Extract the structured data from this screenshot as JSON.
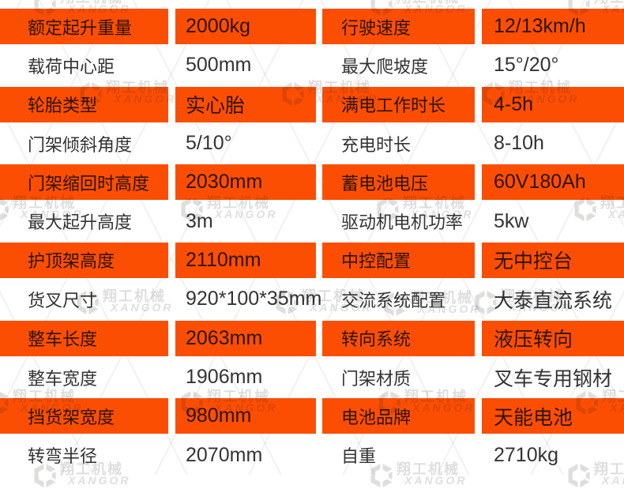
{
  "table": {
    "rows": [
      {
        "left_label": "额定起升重量",
        "left_value": "2000kg",
        "right_label": "行驶速度",
        "right_value": "12/13km/h",
        "highlight": true
      },
      {
        "left_label": "载荷中心距",
        "left_value": "500mm",
        "right_label": "最大爬坡度",
        "right_value": "15°/20°",
        "highlight": false
      },
      {
        "left_label": "轮胎类型",
        "left_value": "实心胎",
        "right_label": "满电工作时长",
        "right_value": "4-5h",
        "highlight": true
      },
      {
        "left_label": "门架倾斜角度",
        "left_value": "5/10°",
        "right_label": "充电时长",
        "right_value": "8-10h",
        "highlight": false
      },
      {
        "left_label": "门架缩回时高度",
        "left_value": "2030mm",
        "right_label": "蓄电池电压",
        "right_value": "60V180Ah",
        "highlight": true
      },
      {
        "left_label": "最大起升高度",
        "left_value": "3m",
        "right_label": "驱动机电机功率",
        "right_value": "5kw",
        "highlight": false
      },
      {
        "left_label": "护顶架高度",
        "left_value": "2110mm",
        "right_label": "中控配置",
        "right_value": "无中控台",
        "highlight": true
      },
      {
        "left_label": "货叉尺寸",
        "left_value": "920*100*35mm",
        "right_label": "交流系统配置",
        "right_value": "大泰直流系统",
        "highlight": false
      },
      {
        "left_label": "整车长度",
        "left_value": "2063mm",
        "right_label": "转向系统",
        "right_value": "液压转向",
        "highlight": true
      },
      {
        "left_label": "整车宽度",
        "left_value": "1906mm",
        "right_label": "门架材质",
        "right_value": "叉车专用钢材",
        "highlight": false
      },
      {
        "left_label": "挡货架宽度",
        "left_value": "980mm",
        "right_label": "电池品牌",
        "right_value": "天能电池",
        "highlight": true
      },
      {
        "left_label": "转弯半径",
        "left_value": "2070mm",
        "right_label": "自重",
        "right_value": "2710kg",
        "highlight": false
      }
    ]
  },
  "watermark": {
    "brand_cn": "翔工机械",
    "brand_en": "XANGOR"
  },
  "colors": {
    "accent": "#fc4e03",
    "text_on_accent": "#2b1405",
    "text_on_white": "#333333"
  }
}
